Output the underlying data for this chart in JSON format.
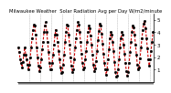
{
  "title": "Milwaukee Weather  Solar Radiation Avg per Day W/m2/minute",
  "line_color": "#cc0000",
  "marker_color": "#000000",
  "background_color": "#ffffff",
  "grid_color": "#999999",
  "values": [
    2.8,
    2.4,
    1.8,
    1.5,
    1.2,
    1.6,
    2.2,
    2.8,
    2.2,
    1.8,
    1.4,
    1.0,
    1.4,
    2.0,
    2.8,
    3.5,
    4.2,
    4.6,
    4.5,
    3.8,
    2.8,
    2.0,
    1.3,
    0.9,
    1.2,
    1.8,
    2.6,
    3.2,
    4.0,
    4.5,
    4.8,
    4.0,
    3.2,
    2.4,
    1.5,
    1.0,
    1.0,
    1.5,
    2.2,
    3.0,
    3.8,
    4.2,
    3.8,
    3.2,
    2.5,
    1.8,
    1.2,
    0.7,
    0.8,
    1.4,
    2.2,
    3.2,
    4.0,
    4.6,
    4.5,
    3.8,
    3.0,
    2.0,
    1.3,
    0.8,
    1.0,
    1.8,
    2.8,
    3.5,
    4.2,
    4.8,
    4.6,
    4.0,
    3.2,
    2.3,
    1.5,
    1.0,
    1.2,
    1.8,
    2.5,
    3.2,
    4.0,
    4.5,
    4.3,
    3.7,
    3.0,
    2.2,
    1.4,
    0.9,
    1.1,
    1.7,
    2.5,
    3.4,
    4.1,
    4.7,
    4.5,
    3.9,
    3.1,
    2.3,
    1.5,
    1.0,
    0.6,
    1.0,
    1.8,
    2.6,
    3.5,
    4.0,
    3.8,
    3.2,
    2.5,
    1.6,
    0.8,
    0.4,
    0.5,
    1.0,
    1.8,
    2.8,
    3.5,
    4.0,
    3.8,
    3.0,
    2.3,
    1.5,
    0.9,
    0.5,
    0.8,
    1.5,
    2.4,
    3.2,
    4.0,
    4.5,
    4.4,
    3.8,
    3.0,
    2.2,
    1.4,
    1.0,
    1.2,
    1.9,
    2.8,
    3.5,
    4.2,
    4.7,
    4.9,
    4.3,
    3.5,
    2.7,
    1.8,
    1.3,
    1.8,
    2.5,
    3.2,
    4.0
  ],
  "ylim": [
    0,
    5.5
  ],
  "yticks": [
    1,
    2,
    3,
    4,
    5
  ],
  "tick_fontsize": 4.0,
  "title_fontsize": 3.8
}
